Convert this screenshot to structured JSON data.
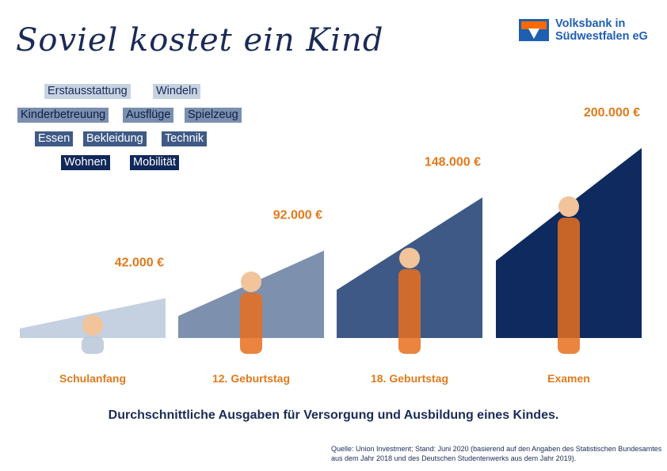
{
  "title": "Soviel kostet ein Kind",
  "logo": {
    "line1": "Volksbank in",
    "line2": "Südwestfalen eG"
  },
  "tags": {
    "row1": [
      "Erstausstattung",
      "Windeln"
    ],
    "row2": [
      "Kinderbetreuung",
      "Ausflüge",
      "Spielzeug"
    ],
    "row3": [
      "Essen",
      "Bekleidung",
      "Technik"
    ],
    "row4": [
      "Wohnen",
      "Mobilität"
    ]
  },
  "colors": {
    "stage1": "#c5d1e0",
    "stage2": "#7d90ad",
    "stage3": "#3e5986",
    "stage4": "#0f2a5e",
    "accent": "#e07a1b",
    "text": "#1b2b57"
  },
  "chart_data": {
    "type": "bar",
    "categories": [
      "Schulanfang",
      "12. Geburtstag",
      "18. Geburtstag",
      "Examen"
    ],
    "values": [
      42000,
      92000,
      148000,
      200000
    ],
    "value_labels": [
      "42.000 €",
      "92.000 €",
      "148.000 €",
      "200.000 €"
    ],
    "title": "Soviel kostet ein Kind",
    "ylim": [
      0,
      200000
    ]
  },
  "icons": [
    "child-with-toy-car",
    "boy-with-racing-helmet",
    "girl-with-race-car",
    "man-with-trophy"
  ],
  "subtitle": "Durchschnittliche Ausgaben für Versorgung und Ausbildung eines Kindes.",
  "source": "Quelle: Union Investment; Stand: Juni 2020 (basierend auf den Angaben des Statistischen Bundesamtes aus dem Jahr 2018 und des Deutschen Studentenwerks aus dem Jahr 2019)."
}
